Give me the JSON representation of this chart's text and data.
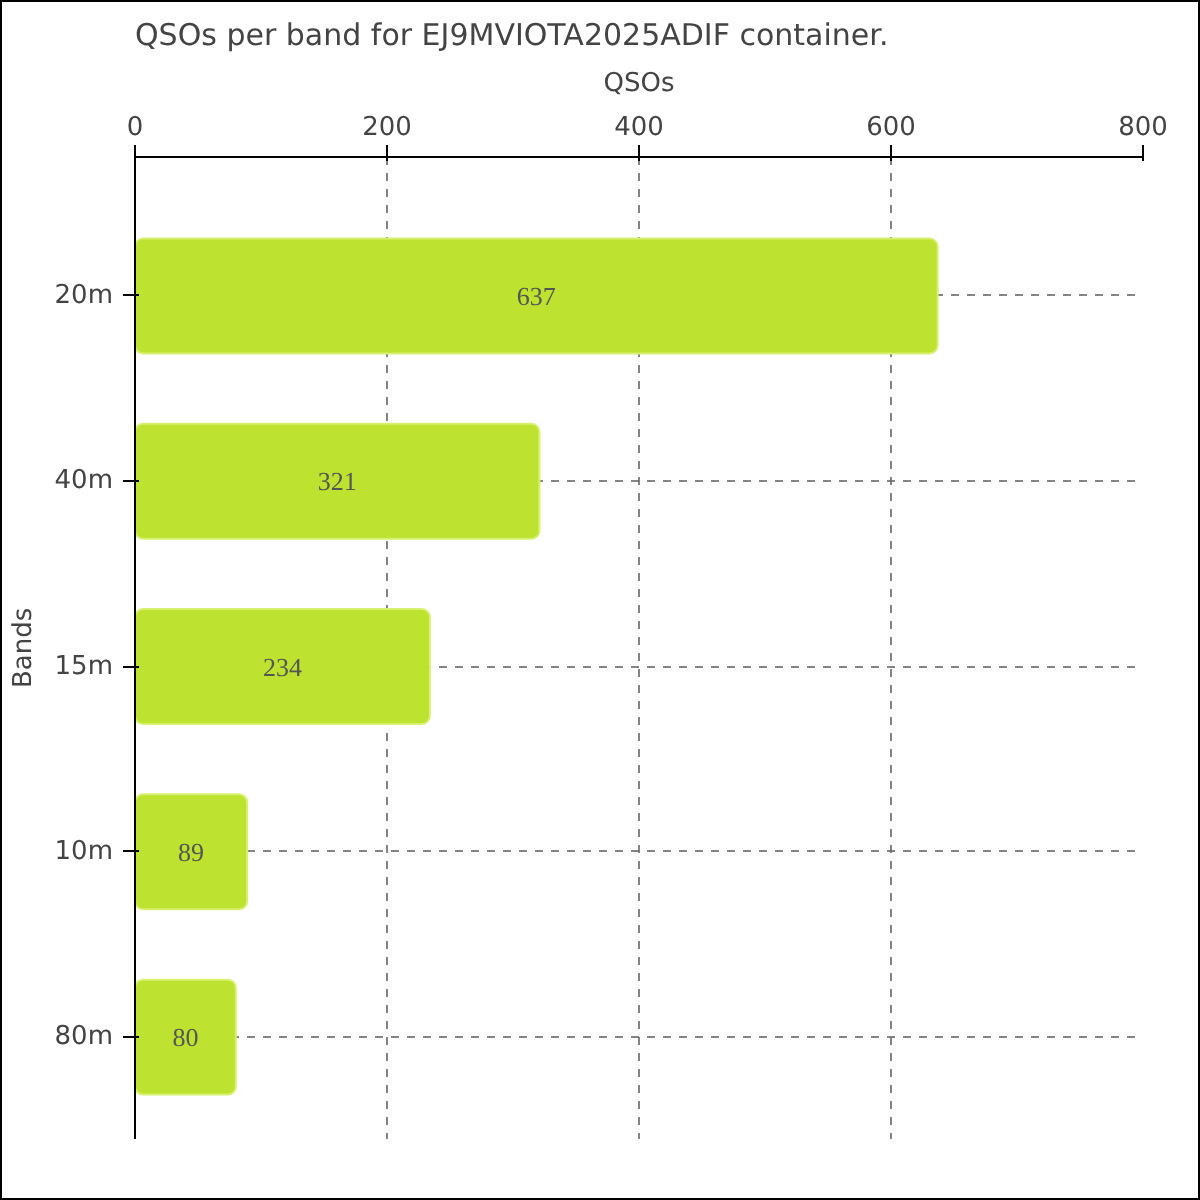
{
  "chart_data": {
    "type": "bar",
    "orientation": "horizontal",
    "title": "QSOs per band for EJ9MVIOTA2025ADIF container.",
    "xlabel": "QSOs",
    "ylabel": "Bands",
    "categories": [
      "20m",
      "40m",
      "15m",
      "10m",
      "80m"
    ],
    "values": [
      637,
      321,
      234,
      89,
      80
    ],
    "color": "#bde22f",
    "xlim": [
      0,
      800
    ],
    "xticks": [
      0,
      200,
      400,
      600,
      800
    ],
    "grid": true,
    "data_labels": true
  }
}
